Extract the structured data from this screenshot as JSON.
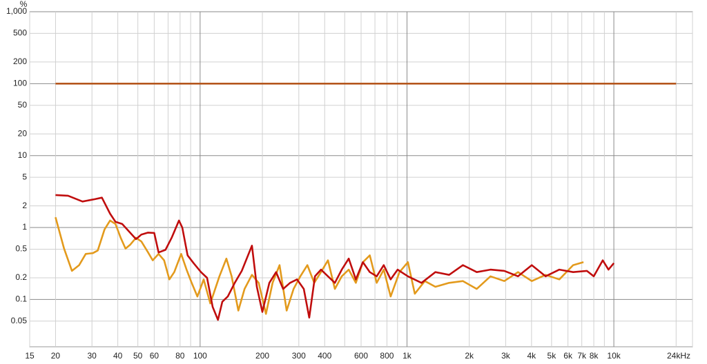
{
  "chart_data": {
    "type": "line",
    "y_unit": "%",
    "xscale": "log",
    "yscale": "log",
    "xlim": [
      15,
      24000
    ],
    "ylim": [
      0.022,
      1000
    ],
    "xticks": [
      15,
      20,
      30,
      40,
      50,
      60,
      80,
      100,
      200,
      300,
      400,
      600,
      800,
      {
        "value": 1000,
        "label": "1k"
      },
      {
        "value": 2000,
        "label": "2k"
      },
      {
        "value": 3000,
        "label": "3k"
      },
      {
        "value": 4000,
        "label": "4k"
      },
      {
        "value": 5000,
        "label": "5k"
      },
      {
        "value": 6000,
        "label": "6k"
      },
      {
        "value": 7000,
        "label": "7k"
      },
      {
        "value": 8000,
        "label": "8k"
      },
      {
        "value": 10000,
        "label": "10k"
      },
      {
        "value": 24000,
        "label": "24kHz"
      }
    ],
    "x_minor_grid": [
      70,
      90,
      500,
      700,
      900,
      9000,
      20000
    ],
    "yticks": [
      0.05,
      0.1,
      0.2,
      0.5,
      1,
      2,
      5,
      10,
      20,
      50,
      100,
      200,
      500,
      {
        "value": 1000,
        "label": "1,000"
      }
    ],
    "grid": true,
    "series": [
      {
        "color": "#b5561c",
        "x": [
          20,
          20000
        ],
        "values": [
          100,
          100
        ]
      },
      {
        "color": "#e39a1c",
        "x": [
          20,
          22,
          24,
          26,
          28,
          30.3,
          32,
          34.5,
          36.7,
          39,
          41.3,
          43.6,
          46,
          49,
          52,
          55.8,
          59,
          63,
          67,
          71,
          75,
          81,
          86,
          91,
          97,
          104,
          112,
          124,
          134,
          142,
          153,
          164,
          178,
          192,
          208,
          224,
          242,
          262,
          283,
          305,
          330,
          356,
          384,
          415,
          448,
          484,
          523,
          566,
          612,
          661,
          714,
          772,
          834,
          920,
          1010,
          1091,
          1220,
          1372,
          1599,
          1864,
          2173,
          2533,
          2953,
          3442,
          4012,
          4677,
          5451,
          6355,
          7130
        ],
        "values": [
          1.39,
          0.51,
          0.25,
          0.3,
          0.43,
          0.44,
          0.48,
          0.94,
          1.25,
          1.12,
          0.72,
          0.51,
          0.58,
          0.72,
          0.64,
          0.46,
          0.35,
          0.43,
          0.35,
          0.19,
          0.24,
          0.43,
          0.26,
          0.17,
          0.11,
          0.19,
          0.088,
          0.21,
          0.37,
          0.21,
          0.07,
          0.14,
          0.22,
          0.17,
          0.063,
          0.17,
          0.3,
          0.07,
          0.14,
          0.21,
          0.3,
          0.17,
          0.24,
          0.35,
          0.14,
          0.21,
          0.26,
          0.17,
          0.33,
          0.41,
          0.17,
          0.26,
          0.11,
          0.24,
          0.33,
          0.12,
          0.18,
          0.15,
          0.17,
          0.18,
          0.14,
          0.21,
          0.18,
          0.24,
          0.18,
          0.22,
          0.19,
          0.3,
          0.33
        ]
      },
      {
        "color": "#c00d0d",
        "x": [
          20,
          23,
          27,
          31,
          33.5,
          36.7,
          39,
          42,
          46,
          49,
          52,
          56,
          60,
          63,
          68,
          73,
          79,
          82,
          87,
          93,
          101,
          108,
          115,
          122,
          128,
          136,
          147,
          159,
          178,
          188,
          200,
          216,
          233,
          252,
          272,
          294,
          317,
          337,
          359,
          384,
          415,
          448,
          484,
          523,
          566,
          612,
          661,
          714,
          772,
          834,
          901,
          1010,
          1175,
          1372,
          1599,
          1864,
          2173,
          2533,
          2953,
          3442,
          4012,
          4677,
          5451,
          6355,
          7407,
          8000,
          8840,
          9420,
          10000
        ],
        "values": [
          2.83,
          2.77,
          2.3,
          2.48,
          2.6,
          1.56,
          1.2,
          1.12,
          0.84,
          0.69,
          0.8,
          0.85,
          0.84,
          0.45,
          0.49,
          0.73,
          1.25,
          1.0,
          0.41,
          0.32,
          0.24,
          0.2,
          0.079,
          0.052,
          0.093,
          0.11,
          0.17,
          0.25,
          0.56,
          0.15,
          0.067,
          0.17,
          0.24,
          0.14,
          0.17,
          0.19,
          0.14,
          0.056,
          0.21,
          0.26,
          0.21,
          0.17,
          0.26,
          0.37,
          0.19,
          0.33,
          0.24,
          0.21,
          0.3,
          0.19,
          0.26,
          0.21,
          0.17,
          0.24,
          0.22,
          0.3,
          0.24,
          0.26,
          0.25,
          0.21,
          0.3,
          0.21,
          0.26,
          0.24,
          0.25,
          0.21,
          0.35,
          0.26,
          0.32
        ]
      }
    ]
  }
}
